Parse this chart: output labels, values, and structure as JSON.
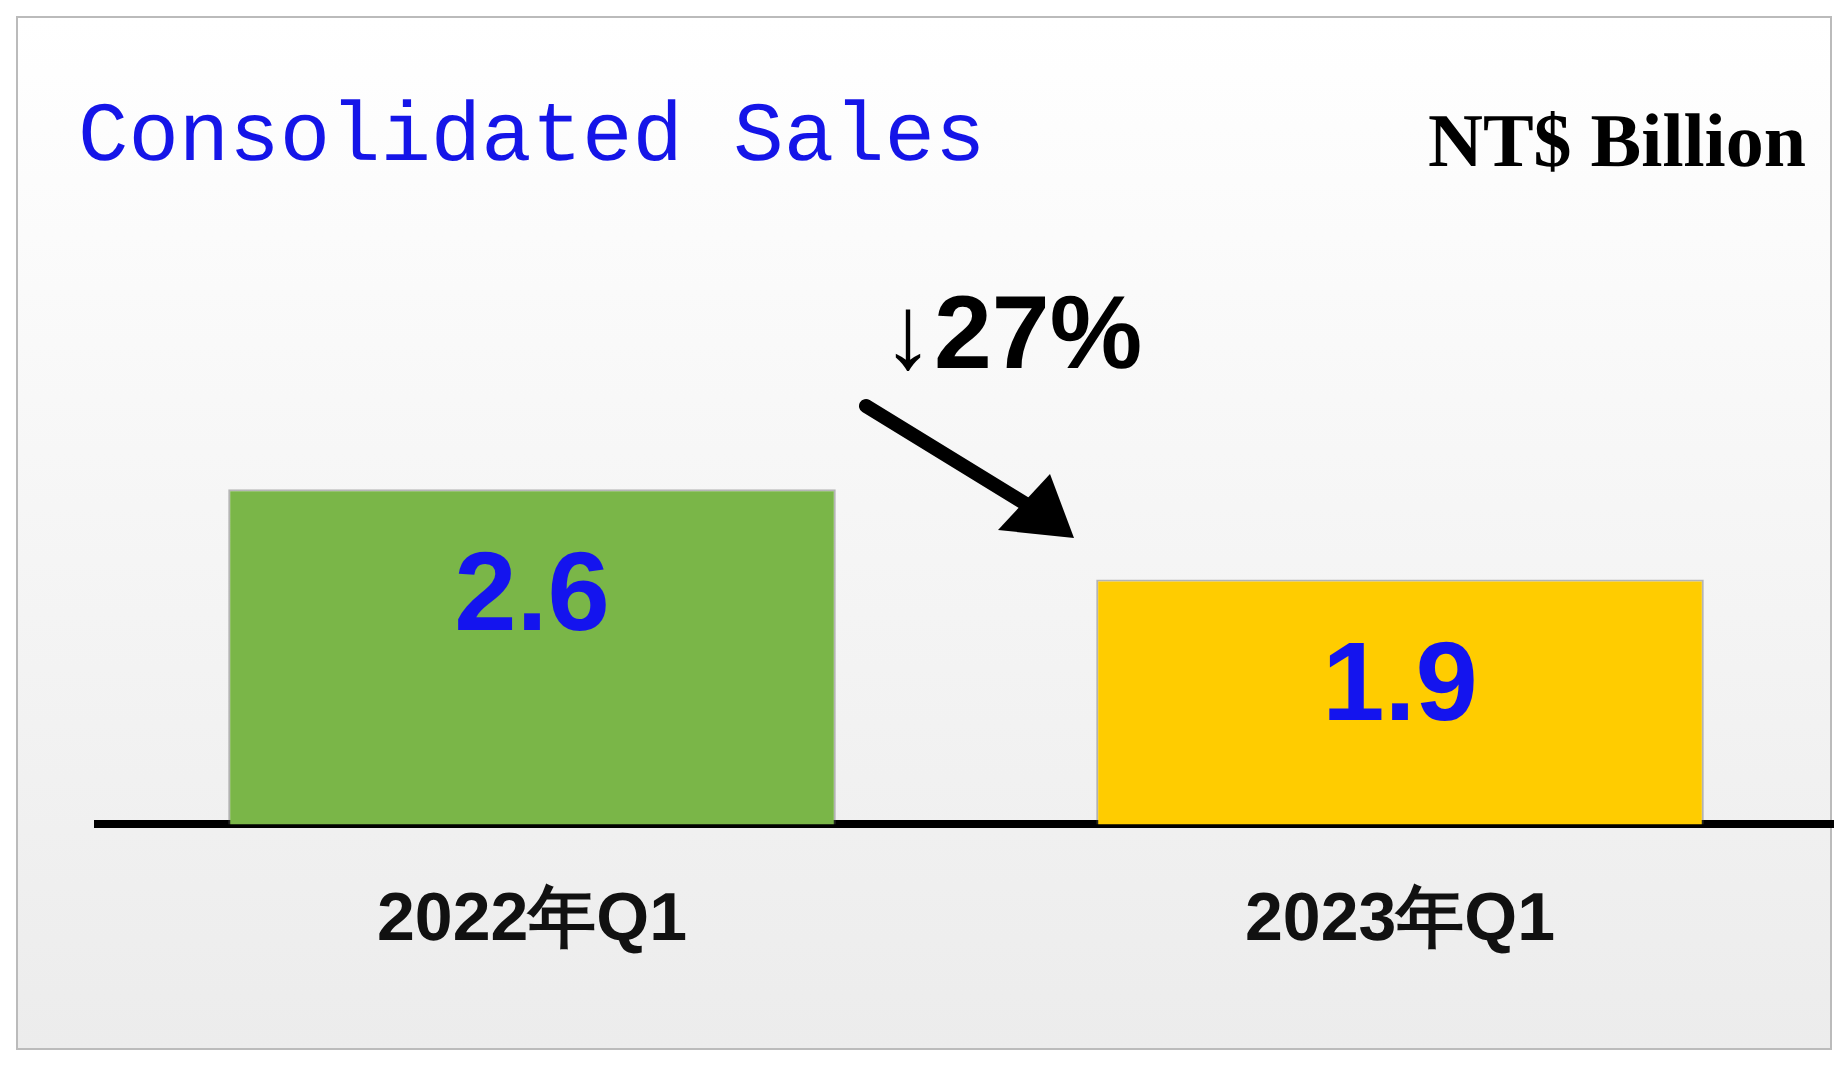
{
  "chart_data": {
    "type": "bar",
    "title": "Consolidated Sales",
    "ylabel": "NT$ Billion",
    "categories": [
      "2022年Q1",
      "2023年Q1"
    ],
    "values": [
      2.6,
      1.9
    ],
    "colors": [
      "#7ab648",
      "#ffcc00"
    ],
    "data_labels": true,
    "grid": false,
    "legend": false,
    "annotations": [
      "↓27%"
    ]
  }
}
